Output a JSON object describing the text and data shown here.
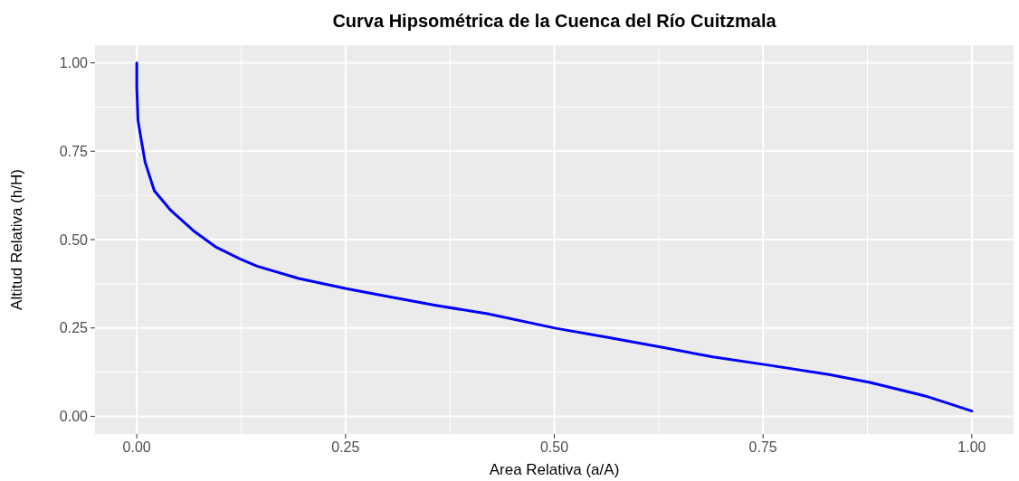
{
  "chart_data": {
    "type": "line",
    "title": "Curva Hipsométrica de la Cuenca del Río Cuitzmala",
    "xlabel": "Area Relativa (a/A)",
    "ylabel": "Altitud Relativa (h/H)",
    "series": [
      {
        "color": "#0000ff",
        "x": [
          0,
          0,
          0.0005,
          0.0014,
          0.005,
          0.01,
          0.021,
          0.041,
          0.069,
          0.094,
          0.123,
          0.144,
          0.194,
          0.251,
          0.301,
          0.358,
          0.42,
          0.502,
          0.56,
          0.627,
          0.69,
          0.753,
          0.829,
          0.878,
          0.945,
          1.0
        ],
        "values": [
          1.0,
          0.93,
          0.9,
          0.838,
          0.787,
          0.719,
          0.638,
          0.582,
          0.523,
          0.48,
          0.446,
          0.425,
          0.39,
          0.361,
          0.339,
          0.314,
          0.29,
          0.249,
          0.225,
          0.196,
          0.168,
          0.146,
          0.118,
          0.096,
          0.057,
          0.015
        ]
      }
    ],
    "xlim": [
      -0.05,
      1.05
    ],
    "ylim": [
      -0.05,
      1.05
    ],
    "xticks": [
      {
        "value": 0,
        "label": "0.00"
      },
      {
        "value": 0.25,
        "label": "0.25"
      },
      {
        "value": 0.5,
        "label": "0.50"
      },
      {
        "value": 0.75,
        "label": "0.75"
      },
      {
        "value": 1,
        "label": "1.00"
      }
    ],
    "yticks": [
      {
        "value": 0,
        "label": "0.00"
      },
      {
        "value": 0.25,
        "label": "0.25"
      },
      {
        "value": 0.5,
        "label": "0.50"
      },
      {
        "value": 0.75,
        "label": "0.75"
      },
      {
        "value": 1,
        "label": "1.00"
      }
    ],
    "grid": true,
    "line_style": "solid",
    "marker": "none"
  }
}
